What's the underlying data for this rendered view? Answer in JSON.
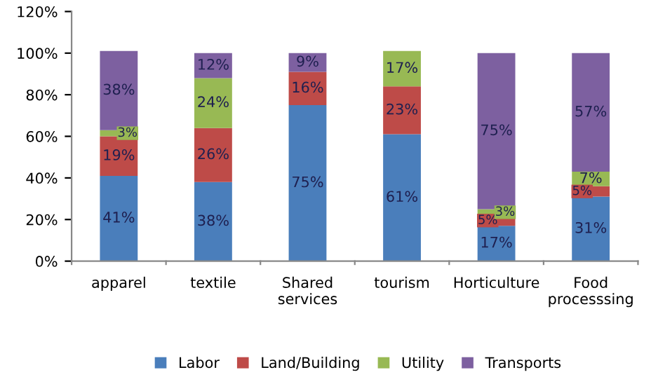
{
  "chart_data": {
    "type": "bar",
    "stacked": true,
    "categories": [
      "apparel",
      "textile",
      "Shared\nservices",
      "tourism",
      "Horticulture",
      "Food\nprocesssing"
    ],
    "series": [
      {
        "name": "Labor",
        "color": "#4a7ebb",
        "values": [
          41,
          38,
          75,
          61,
          17,
          31
        ],
        "value_labels": [
          "41%",
          "38%",
          "75%",
          "61%",
          "17%",
          "31%"
        ]
      },
      {
        "name": "Land/Building",
        "color": "#be4b48",
        "values": [
          19,
          26,
          16,
          23,
          5,
          5
        ],
        "value_labels": [
          "19%",
          "26%",
          "16%",
          "23%",
          "5%",
          "5%"
        ]
      },
      {
        "name": "Utility",
        "color": "#98b954",
        "values": [
          3,
          24,
          null,
          17,
          3,
          7
        ],
        "value_labels": [
          "3%",
          "24%",
          null,
          "17%",
          "3%",
          "7%"
        ]
      },
      {
        "name": "Transports",
        "color": "#7d60a0",
        "values": [
          38,
          12,
          9,
          null,
          75,
          57
        ],
        "value_labels": [
          "38%",
          "12%",
          "9%",
          null,
          "75%",
          "57%"
        ]
      }
    ],
    "ylim": [
      0,
      120
    ],
    "yticks": [
      {
        "value": 0,
        "label": "0%"
      },
      {
        "value": 20,
        "label": "20%"
      },
      {
        "value": 40,
        "label": "40%"
      },
      {
        "value": 60,
        "label": "60%"
      },
      {
        "value": 80,
        "label": "80%"
      },
      {
        "value": 100,
        "label": "100%"
      },
      {
        "value": 120,
        "label": "120%"
      }
    ],
    "grid": false,
    "legend": "bottom"
  }
}
